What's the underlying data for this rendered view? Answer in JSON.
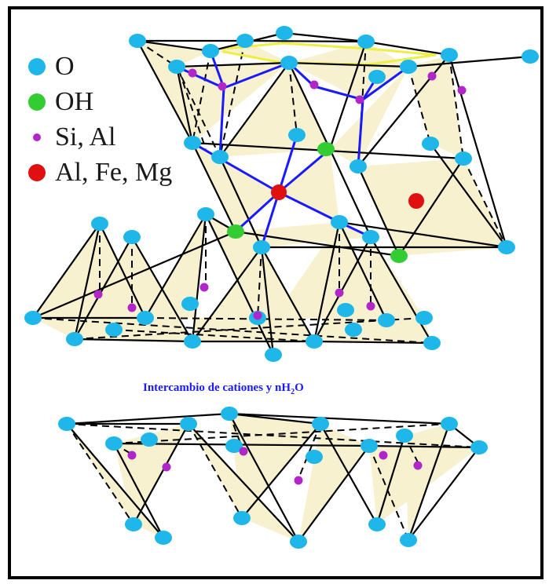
{
  "legend": [
    {
      "label": "O",
      "color": "#1fb7ea",
      "icon": "circle-icon"
    },
    {
      "label": "OH",
      "color": "#33cc33",
      "icon": "circle-icon"
    },
    {
      "label": "Si, Al",
      "color": "#b026c8",
      "icon": "small-dot-icon"
    },
    {
      "label": "Al, Fe, Mg",
      "color": "#e01010",
      "icon": "circle-icon"
    }
  ],
  "caption": {
    "prefix": "Intercambio de cationes y nH",
    "subscript": "2",
    "suffix": "O",
    "color": "#1a1aff"
  },
  "colors": {
    "tetrahedron_fill": "#f7f1cf",
    "edge": "#000000",
    "highlight_edge": "#1a1aff",
    "top_face": "#eeee44"
  }
}
